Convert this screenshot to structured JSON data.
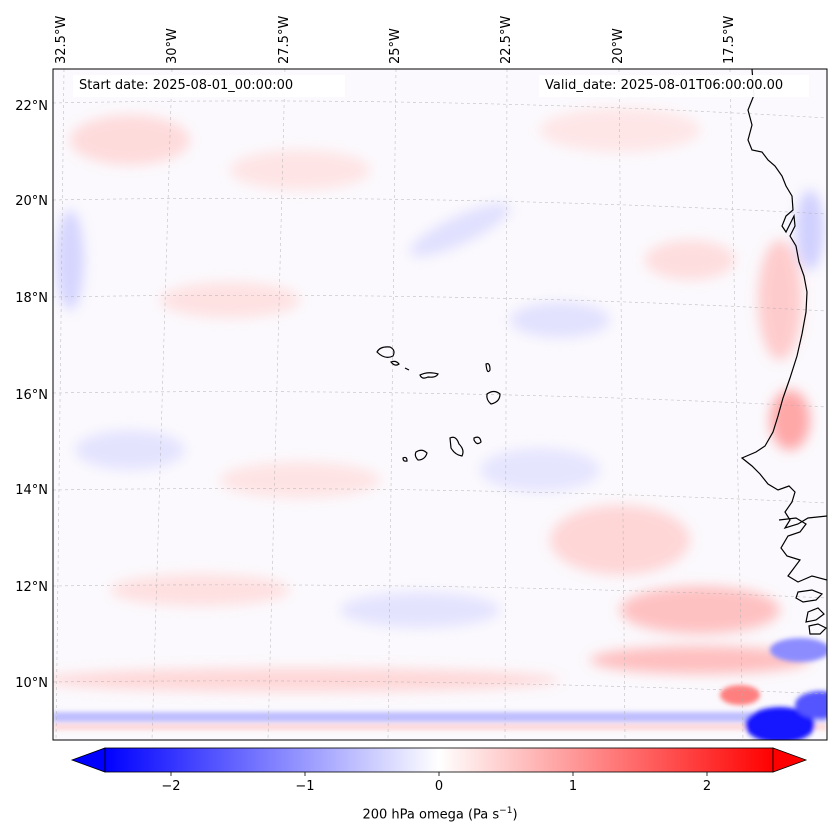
{
  "map": {
    "start_label": "Start date: 2025-08-01_00:00:00",
    "valid_label": "Valid_date: 2025-08-01T06:00:00.00",
    "lon_ticks": [
      "32.5°W",
      "30°W",
      "27.5°W",
      "25°W",
      "22.5°W",
      "20°W",
      "17.5°W"
    ],
    "lat_ticks": [
      "22°N",
      "20°N",
      "18°N",
      "16°N",
      "14°N",
      "12°N",
      "10°N"
    ],
    "field": "200 hPa omega",
    "colorbar": {
      "label": "200 hPa omega (Pa s",
      "unit_superscript": "−1",
      "label_close": ")",
      "ticks": [
        "−2",
        "−1",
        "0",
        "1",
        "2"
      ],
      "vmin": -2.6,
      "vmax": 2.6,
      "cmap": "bwr",
      "low_color": "#0000ff",
      "mid_color": "#ffffff",
      "high_color": "#ff0000"
    },
    "coastline_color": "#000000",
    "gridline_color": "#b0b0b0"
  }
}
